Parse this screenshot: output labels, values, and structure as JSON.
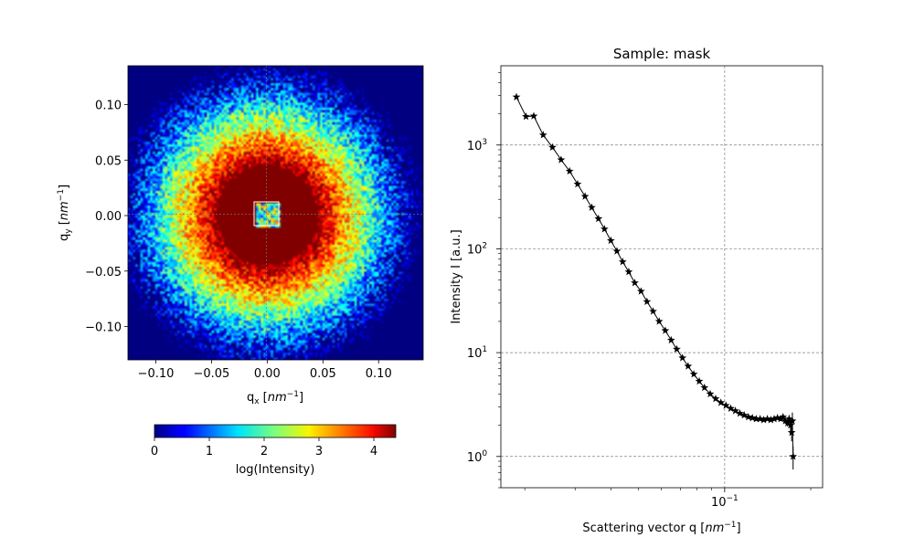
{
  "chart_data": [
    {
      "type": "heatmap",
      "title": "",
      "xlabel": {
        "main": "q",
        "sub": "x",
        "unit": "nm",
        "exp": "−1"
      },
      "ylabel": {
        "main": "q",
        "sub": "y",
        "unit": "nm",
        "exp": "−1"
      },
      "xlim": [
        -0.125,
        0.14
      ],
      "ylim": [
        -0.13,
        0.135
      ],
      "xticks": [
        {
          "value": -0.1,
          "label": "−0.10"
        },
        {
          "value": -0.05,
          "label": "−0.05"
        },
        {
          "value": 0.0,
          "label": "0.00"
        },
        {
          "value": 0.05,
          "label": "0.05"
        },
        {
          "value": 0.1,
          "label": "0.10"
        }
      ],
      "yticks": [
        {
          "value": 0.1,
          "label": "0.10"
        },
        {
          "value": 0.05,
          "label": "0.05"
        },
        {
          "value": 0.0,
          "label": "0.00"
        },
        {
          "value": -0.05,
          "label": "−0.05"
        },
        {
          "value": -0.1,
          "label": "−0.10"
        }
      ],
      "colormap": "jet",
      "value_range": [
        0,
        4.4
      ],
      "profile": "isotropic radial decay; saturated core (log I ≥ 4.4) within |q| ≈ 0.045, reaching ≈ 0.5 at |q| ≈ 0.12",
      "beamstop": {
        "qx": [
          -0.01,
          0.012
        ],
        "qy": [
          -0.01,
          0.012
        ]
      },
      "colorbar": {
        "label": "log(Intensity)",
        "range": [
          0,
          4.4
        ],
        "ticks": [
          {
            "value": 0,
            "label": "0"
          },
          {
            "value": 1,
            "label": "1"
          },
          {
            "value": 2,
            "label": "2"
          },
          {
            "value": 3,
            "label": "3"
          },
          {
            "value": 4,
            "label": "4"
          }
        ]
      }
    },
    {
      "type": "line",
      "title": "Sample: mask",
      "xlabel": {
        "main": "Scattering vector q",
        "unit": "nm",
        "exp": "−1"
      },
      "ylabel": "Intensity I [a.u.]",
      "xscale": "log",
      "yscale": "log",
      "xlim": [
        0.0165,
        0.22
      ],
      "ylim": [
        0.5,
        5800
      ],
      "grid": true,
      "marker": "star",
      "color": "#000000",
      "xticks": [
        {
          "value": 0.1,
          "label": "10",
          "exp": "−1"
        }
      ],
      "yticks": [
        {
          "value": 1,
          "label": "10",
          "exp": "0"
        },
        {
          "value": 10,
          "label": "10",
          "exp": "1"
        },
        {
          "value": 100,
          "label": "10",
          "exp": "2"
        },
        {
          "value": 1000,
          "label": "10",
          "exp": "3"
        }
      ],
      "series": [
        {
          "name": "",
          "x": [
            0.0187,
            0.0202,
            0.0215,
            0.0232,
            0.025,
            0.0268,
            0.0287,
            0.0306,
            0.0325,
            0.0343,
            0.0362,
            0.038,
            0.04,
            0.042,
            0.044,
            0.0462,
            0.0485,
            0.051,
            0.0535,
            0.0562,
            0.059,
            0.062,
            0.065,
            0.068,
            0.0712,
            0.0745,
            0.078,
            0.0815,
            0.085,
            0.089,
            0.093,
            0.097,
            0.101,
            0.105,
            0.109,
            0.113,
            0.117,
            0.121,
            0.125,
            0.129,
            0.133,
            0.137,
            0.141,
            0.145,
            0.149,
            0.153,
            0.157,
            0.16,
            0.163,
            0.166,
            0.168,
            0.17,
            0.1715,
            0.1725,
            0.1735
          ],
          "y": [
            2900,
            1880,
            1900,
            1250,
            950,
            720,
            560,
            420,
            320,
            250,
            195,
            155,
            120,
            95,
            75,
            60,
            47,
            39,
            31,
            25,
            20,
            16.3,
            13.2,
            10.8,
            8.9,
            7.4,
            6.2,
            5.3,
            4.6,
            4.0,
            3.6,
            3.3,
            3.1,
            2.9,
            2.75,
            2.6,
            2.5,
            2.4,
            2.35,
            2.3,
            2.3,
            2.25,
            2.3,
            2.25,
            2.3,
            2.35,
            2.3,
            2.4,
            2.2,
            2.1,
            2.3,
            2.0,
            1.7,
            2.2,
            1.0
          ],
          "yerr": [
            0,
            0,
            0,
            0,
            0,
            0,
            0,
            0,
            0,
            0,
            0,
            0,
            0,
            0,
            0,
            0,
            0,
            0,
            0,
            0,
            0,
            0,
            0,
            0,
            0,
            0,
            0,
            0,
            0,
            0,
            0,
            0,
            0,
            0,
            0,
            0,
            0,
            0.05,
            0.05,
            0.05,
            0.06,
            0.06,
            0.07,
            0.07,
            0.08,
            0.09,
            0.1,
            0.12,
            0.14,
            0.16,
            0.2,
            0.25,
            0.3,
            0.45,
            0.25
          ]
        }
      ]
    }
  ]
}
